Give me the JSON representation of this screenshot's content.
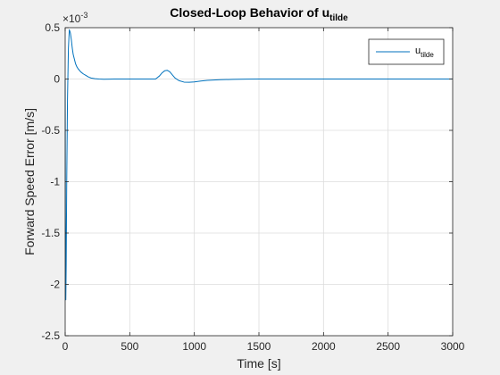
{
  "chart_data": {
    "type": "line",
    "title": "Closed-Loop Behavior of u",
    "title_subscript": "tilde",
    "xlabel": "Time [s]",
    "ylabel": "Forward Speed Error [m/s]",
    "exponent_label": "×10",
    "exponent_power": "-3",
    "xlim": [
      0,
      3000
    ],
    "ylim": [
      -2.5,
      0.5
    ],
    "xticks": [
      0,
      500,
      1000,
      1500,
      2000,
      2500,
      3000
    ],
    "xtick_labels": [
      "0",
      "500",
      "1000",
      "1500",
      "2000",
      "2500",
      "3000"
    ],
    "yticks": [
      0.5,
      0,
      -0.5,
      -1,
      -1.5,
      -2,
      -2.5
    ],
    "ytick_labels": [
      "0.5",
      "0",
      "-0.5",
      "-1",
      "-1.5",
      "-2",
      "-2.5"
    ],
    "grid": true,
    "legend_position": "top-right",
    "series": [
      {
        "name": "u",
        "name_subscript": "tilde",
        "color": "#0072bd",
        "x": [
          0,
          2,
          5,
          8,
          12,
          18,
          25,
          32,
          40,
          48,
          55,
          62,
          70,
          80,
          90,
          100,
          120,
          140,
          160,
          180,
          200,
          230,
          260,
          300,
          350,
          400,
          500,
          600,
          700,
          730,
          750,
          770,
          790,
          810,
          830,
          850,
          880,
          920,
          960,
          1000,
          1050,
          1100,
          1200,
          1300,
          1400,
          1500,
          1600,
          1800,
          2000,
          2200,
          2500,
          2800,
          3000
        ],
        "y": [
          0,
          -1.3,
          -2.15,
          -1.8,
          -1.0,
          -0.2,
          0.3,
          0.48,
          0.45,
          0.38,
          0.3,
          0.24,
          0.2,
          0.15,
          0.12,
          0.1,
          0.07,
          0.05,
          0.035,
          0.02,
          0.01,
          0.003,
          0.0,
          -0.002,
          -0.001,
          0.0,
          0.0,
          0.0,
          0.0,
          0.03,
          0.06,
          0.08,
          0.085,
          0.07,
          0.04,
          0.01,
          -0.015,
          -0.03,
          -0.032,
          -0.028,
          -0.02,
          -0.013,
          -0.007,
          -0.003,
          -0.001,
          0.0,
          0.0,
          0.0,
          0.0,
          0.0,
          0.0,
          0.0,
          0.0
        ]
      }
    ]
  }
}
